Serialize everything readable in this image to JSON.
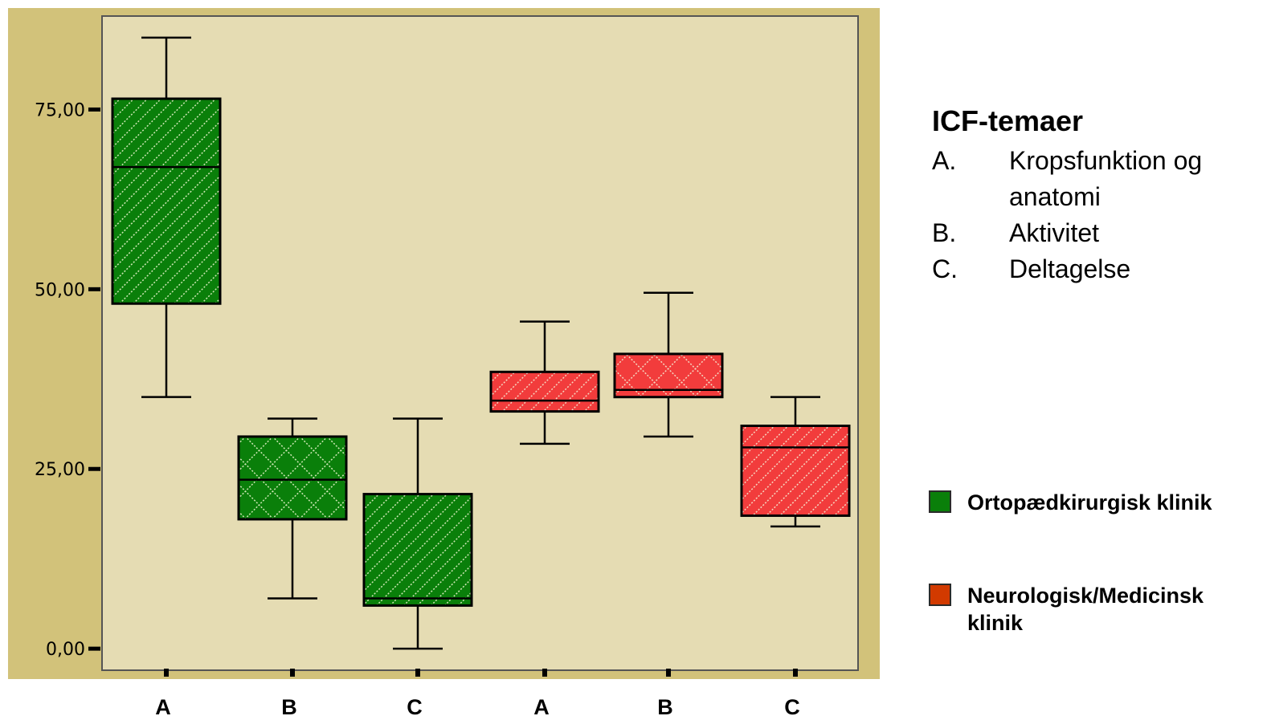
{
  "chart_data": {
    "type": "boxplot",
    "ylim": [
      -3,
      88
    ],
    "yticks": [
      {
        "value": 0,
        "label": "0,00"
      },
      {
        "value": 25,
        "label": "25,00"
      },
      {
        "value": 50,
        "label": "50,00"
      },
      {
        "value": 75,
        "label": "75,00"
      }
    ],
    "categories": [
      "A",
      "B",
      "C",
      "A",
      "B",
      "C"
    ],
    "series": [
      {
        "name": "Ortopædkirurgisk klinik",
        "color": "#0a7f0a",
        "boxes": [
          {
            "category": "A",
            "min": 35,
            "q1": 48,
            "median": 67,
            "q3": 76.5,
            "max": 85
          },
          {
            "category": "B",
            "min": 7,
            "q1": 18,
            "median": 23.5,
            "q3": 29.5,
            "max": 32
          },
          {
            "category": "C",
            "min": 0,
            "q1": 6,
            "median": 7,
            "q3": 21.5,
            "max": 32
          }
        ]
      },
      {
        "name": "Neurologisk/Medicinsk klinik",
        "color": "#f23c3c",
        "boxes": [
          {
            "category": "A",
            "min": 28.5,
            "q1": 33,
            "median": 34.5,
            "q3": 38.5,
            "max": 45.5
          },
          {
            "category": "B",
            "min": 29.5,
            "q1": 35,
            "median": 36,
            "q3": 41,
            "max": 49.5
          },
          {
            "category": "C",
            "min": 17,
            "q1": 18.5,
            "median": 28,
            "q3": 31,
            "max": 35
          }
        ]
      }
    ],
    "colors": {
      "outer_background": "#d2c27a",
      "plot_background": "#e5dcb3",
      "green": "#0a7f0a",
      "red": "#f23c3c",
      "legend_red_swatch": "#d23a00"
    }
  },
  "legend": {
    "title": "ICF-temaer",
    "themes": [
      {
        "letter": "A.",
        "text": "Kropsfunktion og anatomi"
      },
      {
        "letter": "B.",
        "text": "Aktivitet"
      },
      {
        "letter": "C.",
        "text": "Deltagelse"
      }
    ],
    "series": [
      {
        "label": "Ortopædkirurgisk klinik",
        "color": "#0a7f0a"
      },
      {
        "label": "Neurologisk/Medicinsk klinik",
        "color": "#d23a00"
      }
    ]
  }
}
